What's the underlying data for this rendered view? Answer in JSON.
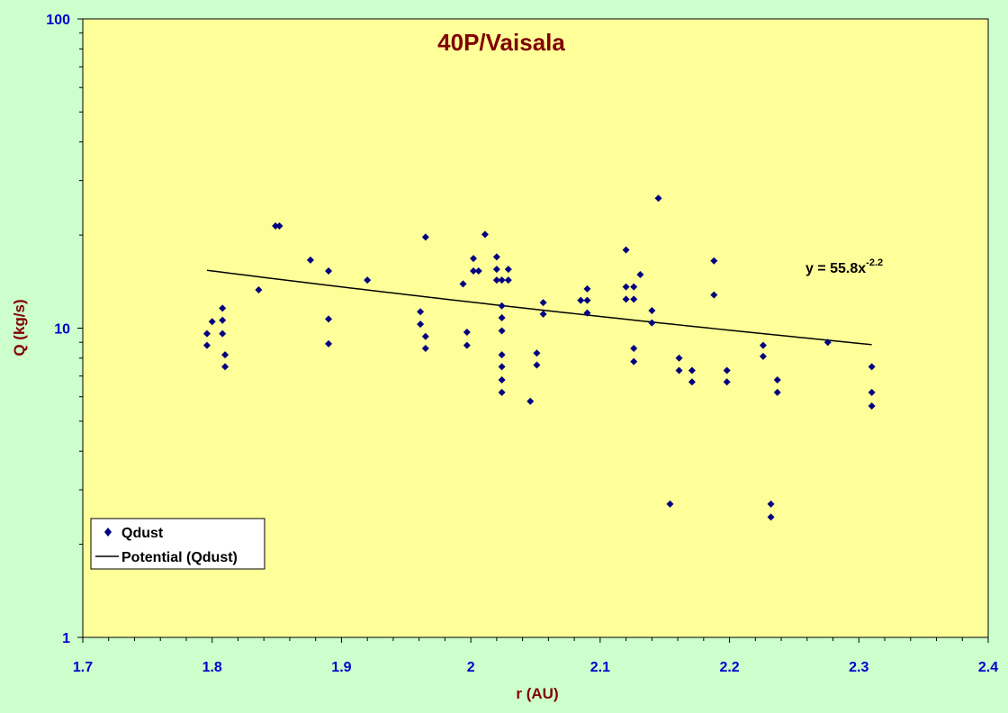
{
  "chart_data": {
    "type": "scatter",
    "title": "40P/Vaisala",
    "xlabel": "r (AU)",
    "ylabel": "Q (kg/s)",
    "xlim": [
      1.7,
      2.4
    ],
    "ylim": [
      1,
      100
    ],
    "yscale": "log",
    "x_ticks": [
      "1.7",
      "1.8",
      "1.9",
      "2",
      "2.1",
      "2.2",
      "2.3",
      "2.4"
    ],
    "y_ticks": [
      "1",
      "10",
      "100"
    ],
    "grid": false,
    "legend_position": "bottom-left",
    "colors": {
      "plot_bg": "#ffff99",
      "page_bg": "#ccffcc",
      "marker": "#000080",
      "trend": "#000000",
      "title": "#800000",
      "ticks": "#0000cc"
    },
    "series": [
      {
        "name": "Qdust",
        "marker": "diamond",
        "points": [
          [
            1.796,
            9.6
          ],
          [
            1.796,
            8.8
          ],
          [
            1.8,
            10.5
          ],
          [
            1.808,
            11.6
          ],
          [
            1.808,
            10.6
          ],
          [
            1.808,
            9.6
          ],
          [
            1.81,
            8.2
          ],
          [
            1.81,
            7.5
          ],
          [
            1.836,
            13.3
          ],
          [
            1.849,
            21.4
          ],
          [
            1.852,
            21.4
          ],
          [
            1.876,
            16.6
          ],
          [
            1.89,
            15.3
          ],
          [
            1.89,
            10.7
          ],
          [
            1.89,
            8.9
          ],
          [
            1.92,
            14.3
          ],
          [
            1.961,
            11.3
          ],
          [
            1.961,
            10.3
          ],
          [
            1.965,
            9.4
          ],
          [
            1.965,
            8.6
          ],
          [
            1.965,
            19.7
          ],
          [
            1.994,
            13.9
          ],
          [
            1.997,
            9.7
          ],
          [
            1.997,
            8.8
          ],
          [
            2.002,
            15.3
          ],
          [
            2.002,
            16.8
          ],
          [
            2.006,
            15.3
          ],
          [
            2.011,
            20.1
          ],
          [
            2.02,
            15.5
          ],
          [
            2.02,
            17.0
          ],
          [
            2.02,
            14.3
          ],
          [
            2.024,
            14.3
          ],
          [
            2.024,
            11.8
          ],
          [
            2.024,
            10.8
          ],
          [
            2.024,
            9.8
          ],
          [
            2.024,
            8.2
          ],
          [
            2.024,
            7.5
          ],
          [
            2.024,
            6.8
          ],
          [
            2.024,
            6.2
          ],
          [
            2.029,
            15.5
          ],
          [
            2.029,
            14.3
          ],
          [
            2.046,
            5.8
          ],
          [
            2.051,
            8.3
          ],
          [
            2.051,
            7.6
          ],
          [
            2.056,
            12.1
          ],
          [
            2.056,
            11.1
          ],
          [
            2.085,
            12.3
          ],
          [
            2.09,
            12.3
          ],
          [
            2.09,
            13.4
          ],
          [
            2.09,
            11.2
          ],
          [
            2.12,
            17.9
          ],
          [
            2.12,
            13.6
          ],
          [
            2.12,
            12.4
          ],
          [
            2.126,
            13.6
          ],
          [
            2.126,
            12.4
          ],
          [
            2.126,
            8.6
          ],
          [
            2.126,
            7.8
          ],
          [
            2.131,
            14.9
          ],
          [
            2.14,
            11.4
          ],
          [
            2.14,
            10.4
          ],
          [
            2.145,
            26.3
          ],
          [
            2.154,
            2.7
          ],
          [
            2.161,
            8.0
          ],
          [
            2.161,
            7.3
          ],
          [
            2.171,
            7.3
          ],
          [
            2.171,
            6.7
          ],
          [
            2.188,
            16.5
          ],
          [
            2.188,
            12.8
          ],
          [
            2.198,
            7.3
          ],
          [
            2.198,
            6.7
          ],
          [
            2.226,
            8.8
          ],
          [
            2.226,
            8.1
          ],
          [
            2.232,
            2.7
          ],
          [
            2.232,
            2.45
          ],
          [
            2.237,
            6.8
          ],
          [
            2.237,
            6.2
          ],
          [
            2.276,
            9.0
          ],
          [
            2.31,
            7.5
          ],
          [
            2.31,
            6.2
          ],
          [
            2.31,
            5.6
          ]
        ]
      },
      {
        "name": "Potential (Qdust)",
        "type": "line",
        "fit": {
          "form": "power",
          "a": 55.8,
          "b": -2.2
        },
        "x_range": [
          1.796,
          2.31
        ]
      }
    ],
    "annotations": {
      "equation_base": "y = 55.8x",
      "equation_exp": "-2.2"
    }
  }
}
